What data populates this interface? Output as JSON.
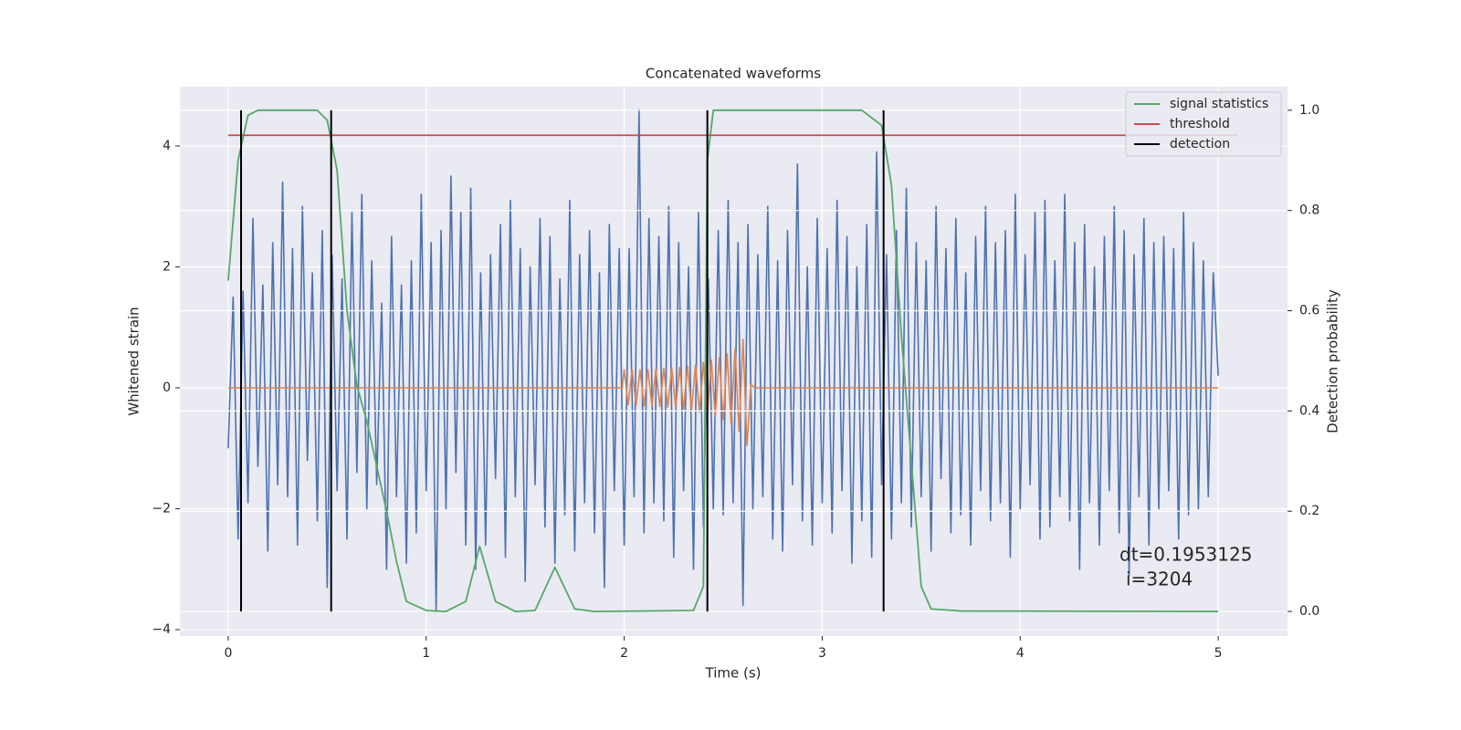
{
  "chart_data": {
    "type": "line",
    "title": "Concatenated waveforms",
    "xlabel": "Time (s)",
    "ylabel": "Whitened strain",
    "y2label": "Detection probability",
    "xlim": [
      -0.244,
      5.35
    ],
    "ylim": [
      -4.105,
      4.98
    ],
    "y2lim": [
      -0.049,
      1.047
    ],
    "xticks": [
      0,
      1,
      2,
      3,
      4,
      5
    ],
    "yticks": [
      {
        "value": -4,
        "label": "−4"
      },
      {
        "value": -2,
        "label": "−2"
      },
      0,
      2,
      4
    ],
    "y2ticks": [
      {
        "value": 0,
        "label": "0.0"
      },
      0.2,
      0.4,
      0.6,
      0.8,
      {
        "value": 1,
        "label": "1.0"
      }
    ],
    "grid": true,
    "legend": "upper right",
    "annotations": [
      "dt=0.1953125",
      "i=3204"
    ],
    "series": [
      {
        "color": "#4c72b0",
        "x": [
          0,
          0.025,
          0.05,
          0.075,
          0.1,
          0.125,
          0.15,
          0.175,
          0.2,
          0.225,
          0.25,
          0.275,
          0.3,
          0.325,
          0.35,
          0.375,
          0.4,
          0.425,
          0.45,
          0.475,
          0.5,
          0.525,
          0.55,
          0.575,
          0.6,
          0.625,
          0.65,
          0.675,
          0.7,
          0.725,
          0.75,
          0.775,
          0.8,
          0.825,
          0.85,
          0.875,
          0.9,
          0.925,
          0.95,
          0.975,
          1,
          1.025,
          1.05,
          1.075,
          1.1,
          1.125,
          1.15,
          1.175,
          1.2,
          1.225,
          1.25,
          1.275,
          1.3,
          1.325,
          1.35,
          1.375,
          1.4,
          1.425,
          1.45,
          1.475,
          1.5,
          1.525,
          1.55,
          1.575,
          1.6,
          1.625,
          1.65,
          1.675,
          1.7,
          1.725,
          1.75,
          1.775,
          1.8,
          1.825,
          1.85,
          1.875,
          1.9,
          1.925,
          1.95,
          1.975,
          2,
          2.025,
          2.05,
          2.075,
          2.1,
          2.125,
          2.15,
          2.175,
          2.2,
          2.225,
          2.25,
          2.275,
          2.3,
          2.325,
          2.35,
          2.375,
          2.4,
          2.425,
          2.45,
          2.475,
          2.5,
          2.525,
          2.55,
          2.575,
          2.6,
          2.625,
          2.65,
          2.675,
          2.7,
          2.725,
          2.75,
          2.775,
          2.8,
          2.825,
          2.85,
          2.875,
          2.9,
          2.925,
          2.95,
          2.975,
          3,
          3.025,
          3.05,
          3.075,
          3.1,
          3.125,
          3.15,
          3.175,
          3.2,
          3.225,
          3.25,
          3.275,
          3.3,
          3.325,
          3.35,
          3.375,
          3.4,
          3.425,
          3.45,
          3.475,
          3.5,
          3.525,
          3.55,
          3.575,
          3.6,
          3.625,
          3.65,
          3.675,
          3.7,
          3.725,
          3.75,
          3.775,
          3.8,
          3.825,
          3.85,
          3.875,
          3.9,
          3.925,
          3.95,
          3.975,
          4,
          4.025,
          4.05,
          4.075,
          4.1,
          4.125,
          4.15,
          4.175,
          4.2,
          4.225,
          4.25,
          4.275,
          4.3,
          4.325,
          4.35,
          4.375,
          4.4,
          4.425,
          4.45,
          4.475,
          4.5,
          4.525,
          4.55,
          4.575,
          4.6,
          4.625,
          4.65,
          4.675,
          4.7,
          4.725,
          4.75,
          4.775,
          4.8,
          4.825,
          4.85,
          4.875,
          4.9,
          4.925,
          4.95,
          4.975,
          5
        ],
        "values": [
          -1.0,
          1.5,
          -2.5,
          1.6,
          -1.9,
          2.8,
          -1.3,
          1.7,
          -2.7,
          2.4,
          -1.6,
          3.4,
          -1.8,
          2.3,
          -2.6,
          3.0,
          -1.2,
          1.9,
          -2.2,
          2.6,
          -3.3,
          2.2,
          -1.7,
          1.8,
          -2.5,
          2.9,
          -1.4,
          3.2,
          -2.0,
          2.1,
          -1.6,
          1.4,
          -3.0,
          2.5,
          -1.8,
          1.7,
          -2.9,
          2.1,
          -2.4,
          3.2,
          -1.7,
          2.4,
          -3.7,
          2.6,
          -2.0,
          3.5,
          -1.4,
          2.9,
          -2.6,
          3.3,
          -3.0,
          1.9,
          -2.6,
          2.2,
          -1.5,
          2.7,
          -2.8,
          3.1,
          -1.8,
          2.3,
          -3.2,
          2.0,
          -1.6,
          2.8,
          -2.3,
          2.5,
          -2.9,
          1.8,
          -2.1,
          3.1,
          -2.7,
          2.2,
          -1.9,
          2.6,
          -2.4,
          1.9,
          -3.3,
          2.7,
          -1.7,
          2.3,
          -2.6,
          2.3,
          -1.8,
          4.6,
          -2.4,
          2.8,
          -1.9,
          2.5,
          -2.2,
          3.0,
          -2.8,
          2.4,
          -1.7,
          2.0,
          -3.0,
          2.9,
          -2.3,
          1.8,
          -2.0,
          2.6,
          -2.1,
          3.1,
          -1.9,
          2.4,
          -3.6,
          2.7,
          -2.0,
          2.2,
          -1.8,
          3.0,
          -2.5,
          2.1,
          -2.7,
          2.6,
          -1.6,
          3.7,
          -2.2,
          2.0,
          -2.6,
          2.8,
          -1.9,
          2.3,
          -2.4,
          3.1,
          -1.7,
          2.5,
          -2.9,
          2.0,
          -2.2,
          2.7,
          -2.8,
          3.9,
          -1.6,
          2.2,
          -2.5,
          2.6,
          -1.9,
          3.3,
          -2.3,
          2.4,
          -1.8,
          2.1,
          -2.7,
          3.0,
          -1.5,
          2.3,
          -2.4,
          2.8,
          -2.1,
          1.9,
          -2.6,
          2.5,
          -1.7,
          3.0,
          -2.2,
          2.4,
          -1.9,
          2.6,
          -2.8,
          3.2,
          -2.0,
          2.2,
          -1.6,
          2.9,
          -2.5,
          3.1,
          -2.3,
          2.1,
          -1.8,
          3.2,
          -2.2,
          2.4,
          -3.0,
          2.7,
          -1.9,
          2.0,
          -2.6,
          2.5,
          -1.7,
          3.0,
          -2.4,
          2.6,
          -3.1,
          2.2,
          -1.8,
          2.8,
          -2.6,
          2.4,
          -2.0,
          2.5,
          -1.7,
          2.3,
          -2.5,
          2.9,
          -2.1,
          2.4,
          -2.0,
          2.1,
          -1.8,
          1.9,
          0.2
        ]
      },
      {
        "color": "#dd8452",
        "x": [
          0,
          1.99,
          2.0,
          2.02,
          2.04,
          2.06,
          2.08,
          2.1,
          2.12,
          2.14,
          2.16,
          2.18,
          2.2,
          2.22,
          2.24,
          2.26,
          2.28,
          2.3,
          2.32,
          2.34,
          2.36,
          2.38,
          2.4,
          2.42,
          2.44,
          2.46,
          2.48,
          2.5,
          2.52,
          2.54,
          2.56,
          2.58,
          2.6,
          2.62,
          2.64,
          2.66,
          5.0
        ],
        "values": [
          0,
          0,
          0.3,
          -0.28,
          0.3,
          -0.29,
          0.3,
          -0.3,
          0.3,
          -0.3,
          0.31,
          -0.31,
          0.32,
          -0.32,
          0.33,
          -0.33,
          0.34,
          -0.35,
          0.36,
          -0.37,
          0.38,
          -0.4,
          0.42,
          -0.44,
          0.46,
          -0.48,
          0.5,
          -0.53,
          0.56,
          -0.6,
          0.65,
          -0.72,
          0.8,
          -0.95,
          0.05,
          0,
          0
        ]
      },
      {
        "name": "signal statistics",
        "color": "#55a868",
        "axis": "y2",
        "x": [
          0,
          0.05,
          0.1,
          0.15,
          0.45,
          0.5,
          0.55,
          0.6,
          0.65,
          0.7,
          0.8,
          0.85,
          0.9,
          1.0,
          1.1,
          1.2,
          1.27,
          1.35,
          1.45,
          1.55,
          1.65,
          1.75,
          1.85,
          2.35,
          2.4,
          2.42,
          2.45,
          3.2,
          3.3,
          3.35,
          3.4,
          3.45,
          3.5,
          3.55,
          3.7,
          5.0
        ],
        "values": [
          0.66,
          0.9,
          0.99,
          1.0,
          1.0,
          0.98,
          0.88,
          0.6,
          0.45,
          0.38,
          0.2,
          0.1,
          0.02,
          0.002,
          0.0,
          0.02,
          0.13,
          0.02,
          0.0,
          0.002,
          0.088,
          0.005,
          0.0,
          0.002,
          0.05,
          0.9,
          1.0,
          1.0,
          0.97,
          0.85,
          0.55,
          0.3,
          0.05,
          0.005,
          0.001,
          0.0
        ]
      },
      {
        "name": "threshold",
        "color": "#c44e52",
        "axis": "y2",
        "x": [
          0,
          5.1
        ],
        "values": [
          0.95,
          0.95
        ]
      },
      {
        "name": "detection",
        "color": "#000000",
        "axis": "y2",
        "kind": "vlines",
        "x": [
          0.065,
          0.52,
          2.42,
          3.31
        ],
        "ymin": 0,
        "ymax": 1
      }
    ]
  }
}
